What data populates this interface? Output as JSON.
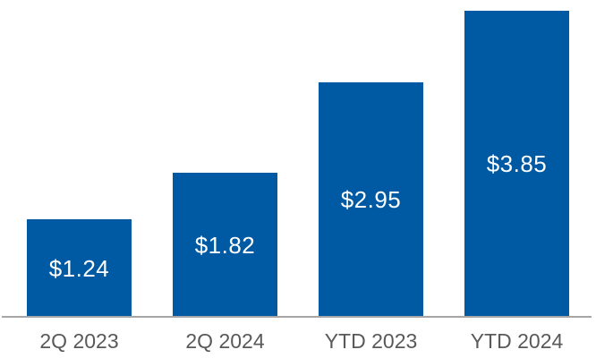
{
  "chart_data": {
    "type": "bar",
    "categories": [
      "2Q 2023",
      "2Q 2024",
      "YTD 2023",
      "YTD 2024"
    ],
    "values": [
      1.24,
      1.82,
      2.95,
      3.85
    ],
    "value_labels": [
      "$1.24",
      "$1.82",
      "$2.95",
      "$3.85"
    ],
    "title": "",
    "xlabel": "",
    "ylabel": "",
    "ylim": [
      0,
      4
    ],
    "grid": false,
    "legend": false,
    "value_label_position": "inside-center",
    "colors": {
      "bar_fill": "#005aa3",
      "value_label_text": "#ffffff",
      "axis_line": "#a6a6a6",
      "category_label_text": "#595959",
      "background": "#ffffff"
    }
  }
}
